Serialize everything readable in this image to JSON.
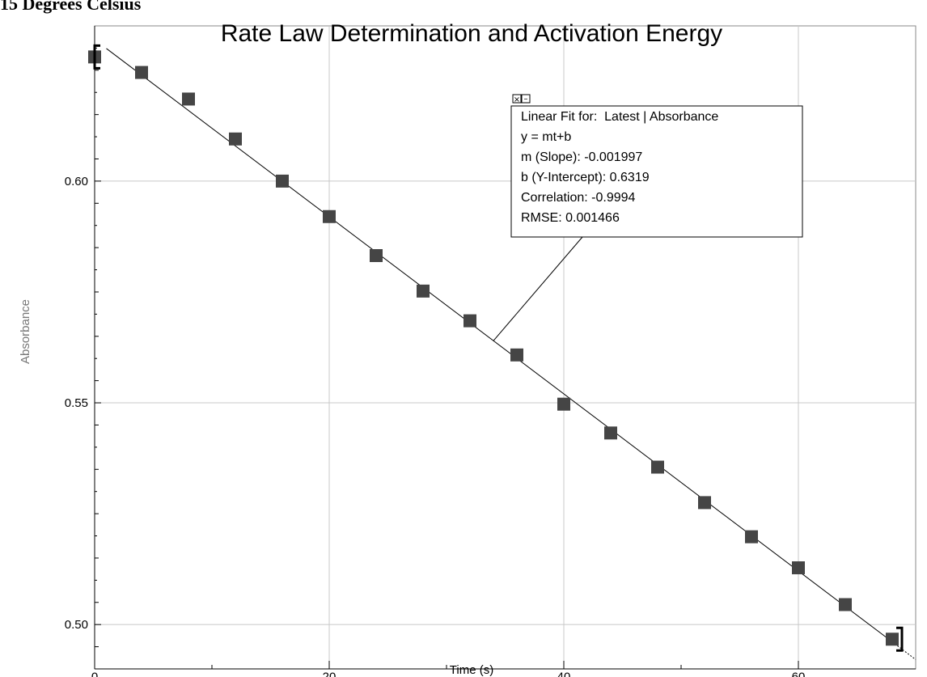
{
  "header": {
    "text": "15 Degrees Celsius"
  },
  "chart_data": {
    "type": "scatter",
    "title": "Rate Law Determination and Activation Energy",
    "xlabel": "Time (s)",
    "ylabel": "Absorbance",
    "xlim": [
      0,
      70
    ],
    "ylim": [
      0.49,
      0.635
    ],
    "x_ticks": [
      0,
      20,
      40,
      60
    ],
    "x_minor_ticks": [
      10,
      30,
      50
    ],
    "y_ticks": [
      0.5,
      0.55,
      0.6
    ],
    "y_tick_labels": [
      "0.50",
      "0.55",
      "0.60"
    ],
    "x_tick_labels": [
      "0",
      "20",
      "40",
      "60"
    ],
    "grid": true,
    "series": [
      {
        "x": [
          0,
          4,
          8,
          12,
          16,
          20,
          24,
          28,
          32,
          36,
          40,
          44,
          48,
          52,
          56,
          60,
          64,
          68
        ],
        "y": [
          0.628,
          0.6245,
          0.6185,
          0.6095,
          0.6,
          0.592,
          0.5832,
          0.5752,
          0.5685,
          0.5608,
          0.5497,
          0.5432,
          0.5355,
          0.5275,
          0.5198,
          0.5128,
          0.5045,
          0.4967
        ],
        "color": "#454545"
      }
    ],
    "fit": {
      "m": -0.001997,
      "b": 0.6319,
      "x_range": [
        1,
        70
      ]
    },
    "selection_brackets": {
      "start_x": 0,
      "end_x": 68
    },
    "annotation": {
      "lines": [
        "Linear Fit for:  Latest | Absorbance",
        "y = mt+b",
        "m (Slope): -0.001997",
        "b (Y-Intercept): 0.6319",
        "Correlation: -0.9994",
        "RMSE: 0.001466"
      ],
      "close_glyph": "×",
      "minimize_glyph": "–"
    }
  }
}
